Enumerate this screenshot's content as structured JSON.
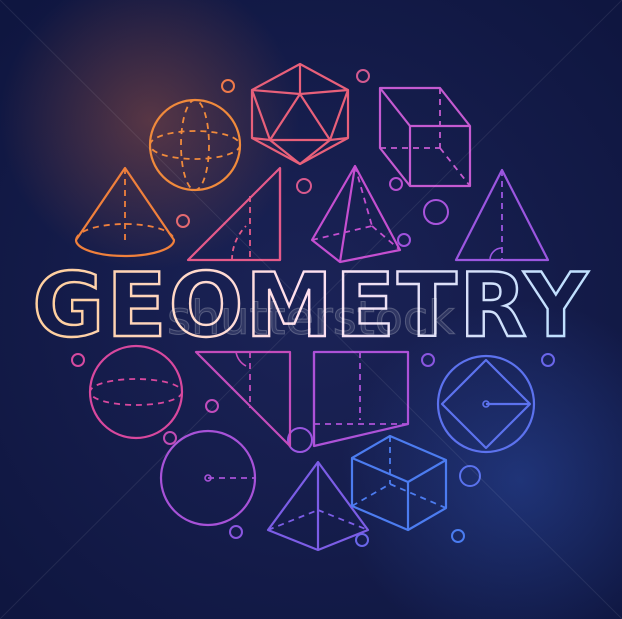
{
  "title": "GEOMETRY",
  "watermark": "shutterstock",
  "colors": {
    "background": "#0f1640",
    "orange": "#f07c3c",
    "pink": "#e040a0",
    "purple": "#a050e0",
    "blue": "#3f7cf0"
  },
  "icons": [
    "sphere-icon",
    "icosahedron-icon",
    "prism-icon",
    "cone-icon",
    "right-triangle-icon",
    "pyramid-icon",
    "triangle-icon",
    "circle-sphere-icon",
    "triangle-ruler-icon",
    "square-prism-icon",
    "circle-in-square-icon",
    "circle-icon",
    "tetra-pyramid-icon",
    "cube-icon"
  ]
}
